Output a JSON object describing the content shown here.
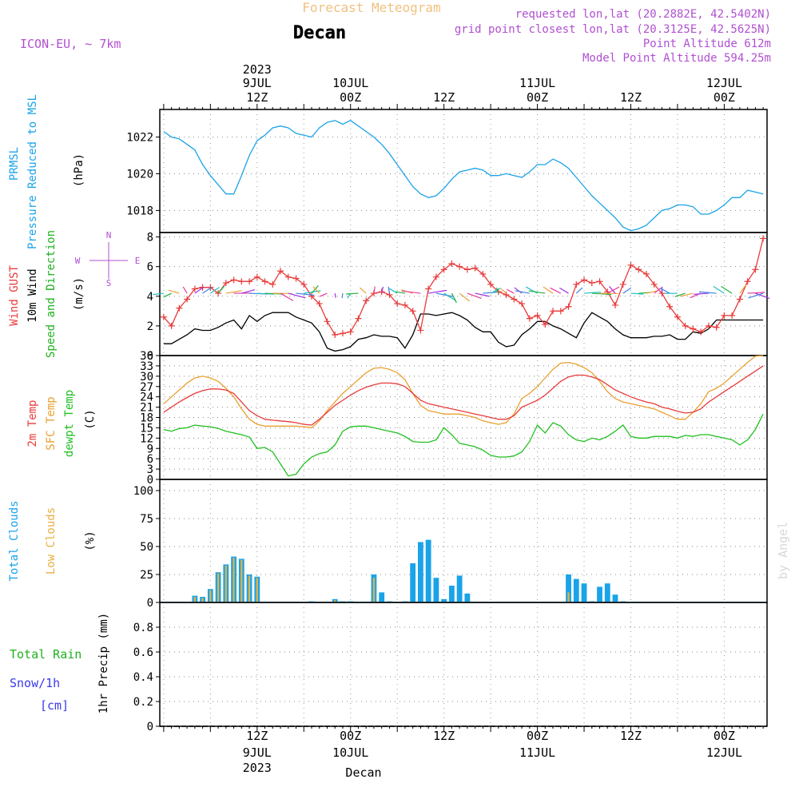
{
  "header": {
    "top_title": "Forecast Meteogram",
    "location": "Decan",
    "model": "ICON-EU, ~ 7km",
    "requested": "requested lon,lat (20.2882E, 42.5402N)",
    "grid_point": "grid point closest lon,lat (20.3125E, 42.5625N)",
    "point_altitude": "Point Altitude 612m",
    "model_altitude": "Model Point Altitude 594.25m",
    "watermark": "by Angel"
  },
  "time_axis": {
    "top_labels": [
      {
        "t": 12,
        "line1": "2023",
        "line2": "9JUL",
        "line3": "12Z"
      },
      {
        "t": 24,
        "line1": "",
        "line2": "10JUL",
        "line3": "00Z"
      },
      {
        "t": 36,
        "line1": "",
        "line2": "",
        "line3": "12Z"
      },
      {
        "t": 48,
        "line1": "",
        "line2": "11JUL",
        "line3": "00Z"
      },
      {
        "t": 60,
        "line1": "",
        "line2": "",
        "line3": "12Z"
      },
      {
        "t": 72,
        "line1": "",
        "line2": "12JUL",
        "line3": "00Z"
      }
    ],
    "bottom_labels": [
      {
        "t": 12,
        "line1": "12Z",
        "line2": "9JUL",
        "line3": "2023"
      },
      {
        "t": 24,
        "line1": "00Z",
        "line2": "10JUL",
        "line3": ""
      },
      {
        "t": 36,
        "line1": "12Z",
        "line2": "",
        "line3": ""
      },
      {
        "t": 48,
        "line1": "00Z",
        "line2": "11JUL",
        "line3": ""
      },
      {
        "t": 60,
        "line1": "12Z",
        "line2": "",
        "line3": ""
      },
      {
        "t": 72,
        "line1": "00Z",
        "line2": "12JUL",
        "line3": ""
      }
    ],
    "bottom_caption": "Decan"
  },
  "colors": {
    "pressure": "#1aa3e8",
    "gust": "#e83a3a",
    "wind": "#000000",
    "wind_dir": "#20b020",
    "temp2m": "#e83a3a",
    "sfc": "#e8a030",
    "dew": "#20c020",
    "total_clouds": "#1aa3e8",
    "low_clouds": "#e8b040",
    "rain": "#20b020",
    "snow": "#3a3ae8",
    "header_purple": "#b050d0",
    "header_orange": "#f0c080"
  },
  "chart_data": [
    {
      "type": "line",
      "panel": "pressure",
      "labels": {
        "line1": "PRMSL",
        "line2": "Pressure Reduced to MSL",
        "unit": "(hPa)"
      },
      "ylim": [
        1016.8,
        1023.5
      ],
      "yticks": [
        1018,
        1020,
        1022
      ],
      "x": [
        0,
        1,
        2,
        3,
        4,
        5,
        6,
        7,
        8,
        9,
        10,
        11,
        12,
        13,
        14,
        15,
        16,
        17,
        18,
        19,
        20,
        21,
        22,
        23,
        24,
        25,
        26,
        27,
        28,
        29,
        30,
        31,
        32,
        33,
        34,
        35,
        36,
        37,
        38,
        39,
        40,
        41,
        42,
        43,
        44,
        45,
        46,
        47,
        48,
        49,
        50,
        51,
        52,
        53,
        54,
        55,
        56,
        57,
        58,
        59,
        60,
        61,
        62,
        63,
        64,
        65,
        66,
        67,
        68,
        69,
        70,
        71,
        72,
        73,
        74,
        75,
        76,
        77
      ],
      "series": [
        {
          "name": "PRMSL",
          "values": [
            1022.3,
            1022.0,
            1021.9,
            1021.6,
            1021.3,
            1020.5,
            1019.9,
            1019.4,
            1018.9,
            1018.9,
            1019.9,
            1021.0,
            1021.8,
            1022.1,
            1022.5,
            1022.6,
            1022.5,
            1022.2,
            1022.1,
            1022.0,
            1022.5,
            1022.8,
            1022.9,
            1022.7,
            1022.9,
            1022.6,
            1022.3,
            1022.0,
            1021.6,
            1021.1,
            1020.5,
            1019.9,
            1019.3,
            1018.9,
            1018.7,
            1018.8,
            1019.2,
            1019.7,
            1020.1,
            1020.2,
            1020.3,
            1020.2,
            1019.9,
            1019.9,
            1020.0,
            1019.9,
            1019.8,
            1020.1,
            1020.5,
            1020.5,
            1020.8,
            1020.6,
            1020.3,
            1019.8,
            1019.3,
            1018.8,
            1018.4,
            1018.0,
            1017.6,
            1017.1,
            1016.9,
            1017.0,
            1017.2,
            1017.6,
            1018.0,
            1018.1,
            1018.3,
            1018.3,
            1018.2,
            1017.8,
            1017.8,
            1018.0,
            1018.3,
            1018.7,
            1018.7,
            1019.1,
            1019.0,
            1018.9
          ]
        }
      ]
    },
    {
      "type": "line",
      "panel": "wind",
      "labels": {
        "gust": "Wind GUST",
        "wind": "10m Wind",
        "dir": "Speed and Direction",
        "unit": "(m/s)",
        "compass_w": "W",
        "compass_e": "E",
        "compass_n": "N",
        "compass_s": "S"
      },
      "ylim": [
        0,
        8.3
      ],
      "yticks": [
        0,
        2,
        4,
        6,
        8
      ],
      "x": [
        0,
        1,
        2,
        3,
        4,
        5,
        6,
        7,
        8,
        9,
        10,
        11,
        12,
        13,
        14,
        15,
        16,
        17,
        18,
        19,
        20,
        21,
        22,
        23,
        24,
        25,
        26,
        27,
        28,
        29,
        30,
        31,
        32,
        33,
        34,
        35,
        36,
        37,
        38,
        39,
        40,
        41,
        42,
        43,
        44,
        45,
        46,
        47,
        48,
        49,
        50,
        51,
        52,
        53,
        54,
        55,
        56,
        57,
        58,
        59,
        60,
        61,
        62,
        63,
        64,
        65,
        66,
        67,
        68,
        69,
        70,
        71,
        72,
        73,
        74,
        75,
        76,
        77
      ],
      "series": [
        {
          "name": "Wind GUST",
          "values": [
            2.6,
            2.0,
            3.2,
            3.8,
            4.5,
            4.6,
            4.6,
            4.2,
            4.9,
            5.1,
            5.0,
            5.0,
            5.3,
            5.0,
            4.8,
            5.7,
            5.3,
            5.2,
            4.8,
            4.0,
            3.5,
            2.3,
            1.4,
            1.5,
            1.6,
            2.5,
            3.7,
            4.2,
            4.3,
            4.1,
            3.5,
            3.4,
            3.0,
            1.7,
            4.5,
            5.3,
            5.8,
            6.2,
            6.0,
            5.8,
            5.9,
            5.5,
            4.8,
            4.3,
            4.1,
            3.8,
            3.5,
            2.5,
            2.7,
            2.1,
            3.0,
            3.0,
            3.3,
            4.8,
            5.1,
            4.9,
            5.0,
            4.3,
            3.4,
            4.8,
            6.1,
            5.8,
            5.5,
            4.8,
            4.2,
            3.3,
            2.6,
            2.0,
            1.8,
            1.6,
            2.0,
            1.9,
            2.7,
            2.7,
            3.8,
            5.0,
            5.8,
            7.9
          ]
        },
        {
          "name": "10m Wind",
          "values": [
            0.8,
            0.8,
            1.1,
            1.4,
            1.8,
            1.7,
            1.7,
            1.9,
            2.2,
            2.4,
            1.8,
            2.7,
            2.3,
            2.7,
            2.9,
            2.9,
            2.9,
            2.6,
            2.4,
            2.2,
            1.6,
            0.5,
            0.3,
            0.4,
            0.6,
            1.1,
            1.2,
            1.4,
            1.3,
            1.3,
            1.2,
            0.5,
            1.4,
            2.8,
            2.8,
            2.7,
            2.8,
            2.9,
            2.7,
            2.4,
            1.9,
            1.6,
            1.6,
            0.9,
            0.6,
            0.7,
            1.4,
            1.8,
            2.3,
            2.3,
            2.0,
            1.8,
            1.5,
            1.2,
            2.2,
            2.9,
            2.6,
            2.3,
            1.8,
            1.4,
            1.2,
            1.2,
            1.2,
            1.3,
            1.3,
            1.4,
            1.1,
            1.1,
            1.6,
            1.5,
            1.8,
            2.4,
            2.4,
            2.4,
            2.4,
            2.4,
            2.4,
            2.4
          ]
        }
      ]
    },
    {
      "type": "line",
      "panel": "temperature",
      "labels": {
        "t2m": "2m Temp",
        "sfc": "SFC Temp",
        "dew": "dewpt Temp",
        "unit": "(C)"
      },
      "ylim": [
        0,
        36
      ],
      "yticks": [
        0,
        3,
        6,
        9,
        12,
        15,
        18,
        21,
        24,
        27,
        30,
        33,
        36
      ],
      "x": [
        0,
        1,
        2,
        3,
        4,
        5,
        6,
        7,
        8,
        9,
        10,
        11,
        12,
        13,
        14,
        15,
        16,
        17,
        18,
        19,
        20,
        21,
        22,
        23,
        24,
        25,
        26,
        27,
        28,
        29,
        30,
        31,
        32,
        33,
        34,
        35,
        36,
        37,
        38,
        39,
        40,
        41,
        42,
        43,
        44,
        45,
        46,
        47,
        48,
        49,
        50,
        51,
        52,
        53,
        54,
        55,
        56,
        57,
        58,
        59,
        60,
        61,
        62,
        63,
        64,
        65,
        66,
        67,
        68,
        69,
        70,
        71,
        72,
        73,
        74,
        75,
        76,
        77
      ],
      "series": [
        {
          "name": "2m Temp",
          "values": [
            19.5,
            21.0,
            22.5,
            23.8,
            25.0,
            25.8,
            26.3,
            26.3,
            26.0,
            25.0,
            22.5,
            20.0,
            18.5,
            17.5,
            17.2,
            17.0,
            16.8,
            16.5,
            16.0,
            15.8,
            17.5,
            19.5,
            21.5,
            23.0,
            24.5,
            25.8,
            26.8,
            27.5,
            28.0,
            28.0,
            27.8,
            27.0,
            25.0,
            23.0,
            22.0,
            21.5,
            21.0,
            20.5,
            20.0,
            19.5,
            19.0,
            18.5,
            18.0,
            17.5,
            17.5,
            18.5,
            21.0,
            22.0,
            23.0,
            24.5,
            26.5,
            28.5,
            29.8,
            30.3,
            30.3,
            29.8,
            29.0,
            27.5,
            26.0,
            25.0,
            24.0,
            23.2,
            22.5,
            22.0,
            21.0,
            20.5,
            19.8,
            19.3,
            19.5,
            20.5,
            22.5,
            24.0,
            25.5,
            27.0,
            28.5,
            30.0,
            31.5,
            33.0
          ]
        },
        {
          "name": "SFC Temp",
          "values": [
            22.0,
            24.0,
            26.0,
            28.0,
            29.5,
            30.0,
            29.5,
            28.5,
            26.5,
            24.0,
            20.5,
            17.5,
            16.0,
            15.5,
            15.5,
            15.5,
            15.5,
            15.5,
            15.3,
            15.0,
            17.0,
            20.0,
            22.5,
            25.0,
            27.0,
            29.0,
            31.0,
            32.3,
            32.5,
            32.0,
            31.0,
            29.0,
            25.0,
            21.5,
            20.0,
            19.5,
            19.0,
            19.0,
            19.0,
            18.5,
            18.0,
            17.0,
            16.5,
            16.0,
            16.5,
            19.0,
            23.5,
            25.0,
            27.0,
            29.5,
            32.0,
            33.8,
            34.0,
            33.5,
            32.5,
            31.0,
            28.5,
            25.5,
            23.5,
            22.5,
            22.0,
            21.5,
            21.0,
            20.5,
            19.5,
            18.5,
            17.5,
            17.5,
            19.5,
            22.0,
            25.5,
            26.5,
            28.0,
            30.0,
            32.0,
            34.0,
            35.8,
            36.0
          ]
        },
        {
          "name": "dewpt Temp",
          "values": [
            14.5,
            14.0,
            14.8,
            15.0,
            15.8,
            15.5,
            15.3,
            14.8,
            14.0,
            13.5,
            13.0,
            12.3,
            9.0,
            9.3,
            8.0,
            4.5,
            1.0,
            1.5,
            4.5,
            6.5,
            7.5,
            8.0,
            10.0,
            14.0,
            15.3,
            15.5,
            15.5,
            15.0,
            14.5,
            14.0,
            13.5,
            12.5,
            11.0,
            10.8,
            10.8,
            11.5,
            15.0,
            13.0,
            10.5,
            10.0,
            9.5,
            8.5,
            7.0,
            6.5,
            6.5,
            6.8,
            8.0,
            11.0,
            15.8,
            13.5,
            16.5,
            15.5,
            13.0,
            11.5,
            11.0,
            12.0,
            11.5,
            12.5,
            14.0,
            15.8,
            12.5,
            12.0,
            12.0,
            12.5,
            12.5,
            12.5,
            12.0,
            12.8,
            12.5,
            13.0,
            13.0,
            12.5,
            12.0,
            11.5,
            10.0,
            11.5,
            14.5,
            19.0
          ]
        }
      ]
    },
    {
      "type": "bar",
      "panel": "clouds",
      "labels": {
        "total": "Total Clouds",
        "low": "Low Clouds",
        "unit": "(%)"
      },
      "ylim": [
        0,
        110
      ],
      "yticks": [
        0,
        25,
        50,
        75,
        100
      ],
      "x": [
        0,
        1,
        2,
        3,
        4,
        5,
        6,
        7,
        8,
        9,
        10,
        11,
        12,
        13,
        14,
        15,
        16,
        17,
        18,
        19,
        20,
        21,
        22,
        23,
        24,
        25,
        26,
        27,
        28,
        29,
        30,
        31,
        32,
        33,
        34,
        35,
        36,
        37,
        38,
        39,
        40,
        41,
        42,
        43,
        44,
        45,
        46,
        47,
        48,
        49,
        50,
        51,
        52,
        53,
        54,
        55,
        56,
        57,
        58,
        59,
        60,
        61,
        62,
        63,
        64,
        65,
        66,
        67,
        68,
        69,
        70,
        71,
        72,
        73,
        74,
        75,
        76,
        77
      ],
      "series": [
        {
          "name": "Total Clouds",
          "values": [
            0,
            0,
            0,
            0,
            6,
            5,
            12,
            27,
            34,
            41,
            39,
            25,
            23,
            0,
            0,
            0,
            0,
            0,
            0,
            1,
            0,
            0,
            3,
            1,
            1,
            0,
            0,
            25,
            9,
            1,
            0,
            1,
            35,
            54,
            56,
            22,
            3,
            15,
            24,
            8,
            0,
            0,
            0,
            0,
            0,
            0,
            0,
            0,
            0,
            0,
            0,
            0,
            25,
            21,
            17,
            1,
            14,
            17,
            7,
            1,
            0,
            0,
            0,
            0,
            0,
            0,
            0,
            0,
            0,
            0,
            0,
            0,
            0,
            0,
            0,
            0,
            0,
            0
          ]
        },
        {
          "name": "Low Clouds",
          "values": [
            0,
            0,
            0,
            0,
            5,
            4,
            11,
            26,
            33,
            40,
            38,
            24,
            22,
            0,
            0,
            0,
            0,
            0,
            0,
            0,
            0,
            0,
            2,
            0,
            0,
            0,
            0,
            22,
            0,
            0,
            0,
            0,
            0,
            0,
            0,
            0,
            0,
            0,
            0,
            0,
            0,
            0,
            0,
            0,
            0,
            0,
            0,
            0,
            0,
            0,
            0,
            0,
            9,
            0,
            0,
            0,
            0,
            0,
            0,
            0,
            0,
            0,
            0,
            0,
            0,
            0,
            0,
            0,
            0,
            0,
            0,
            0,
            0,
            0,
            0,
            0,
            0,
            0
          ]
        }
      ]
    },
    {
      "type": "bar",
      "panel": "precip",
      "labels": {
        "rain": "Total Rain",
        "snow": "Snow/1h",
        "snow_unit": "[cm]",
        "unit": "1hr Precip (mm)"
      },
      "ylim": [
        0,
        1.0
      ],
      "yticks": [
        0,
        0.2,
        0.4,
        0.6,
        0.8
      ],
      "ytick_labels": [
        "0",
        "0.2",
        "0.4",
        "0.6",
        "0.8"
      ],
      "series": [
        {
          "name": "Total Rain",
          "values": []
        },
        {
          "name": "Snow/1h",
          "values": []
        }
      ]
    }
  ]
}
